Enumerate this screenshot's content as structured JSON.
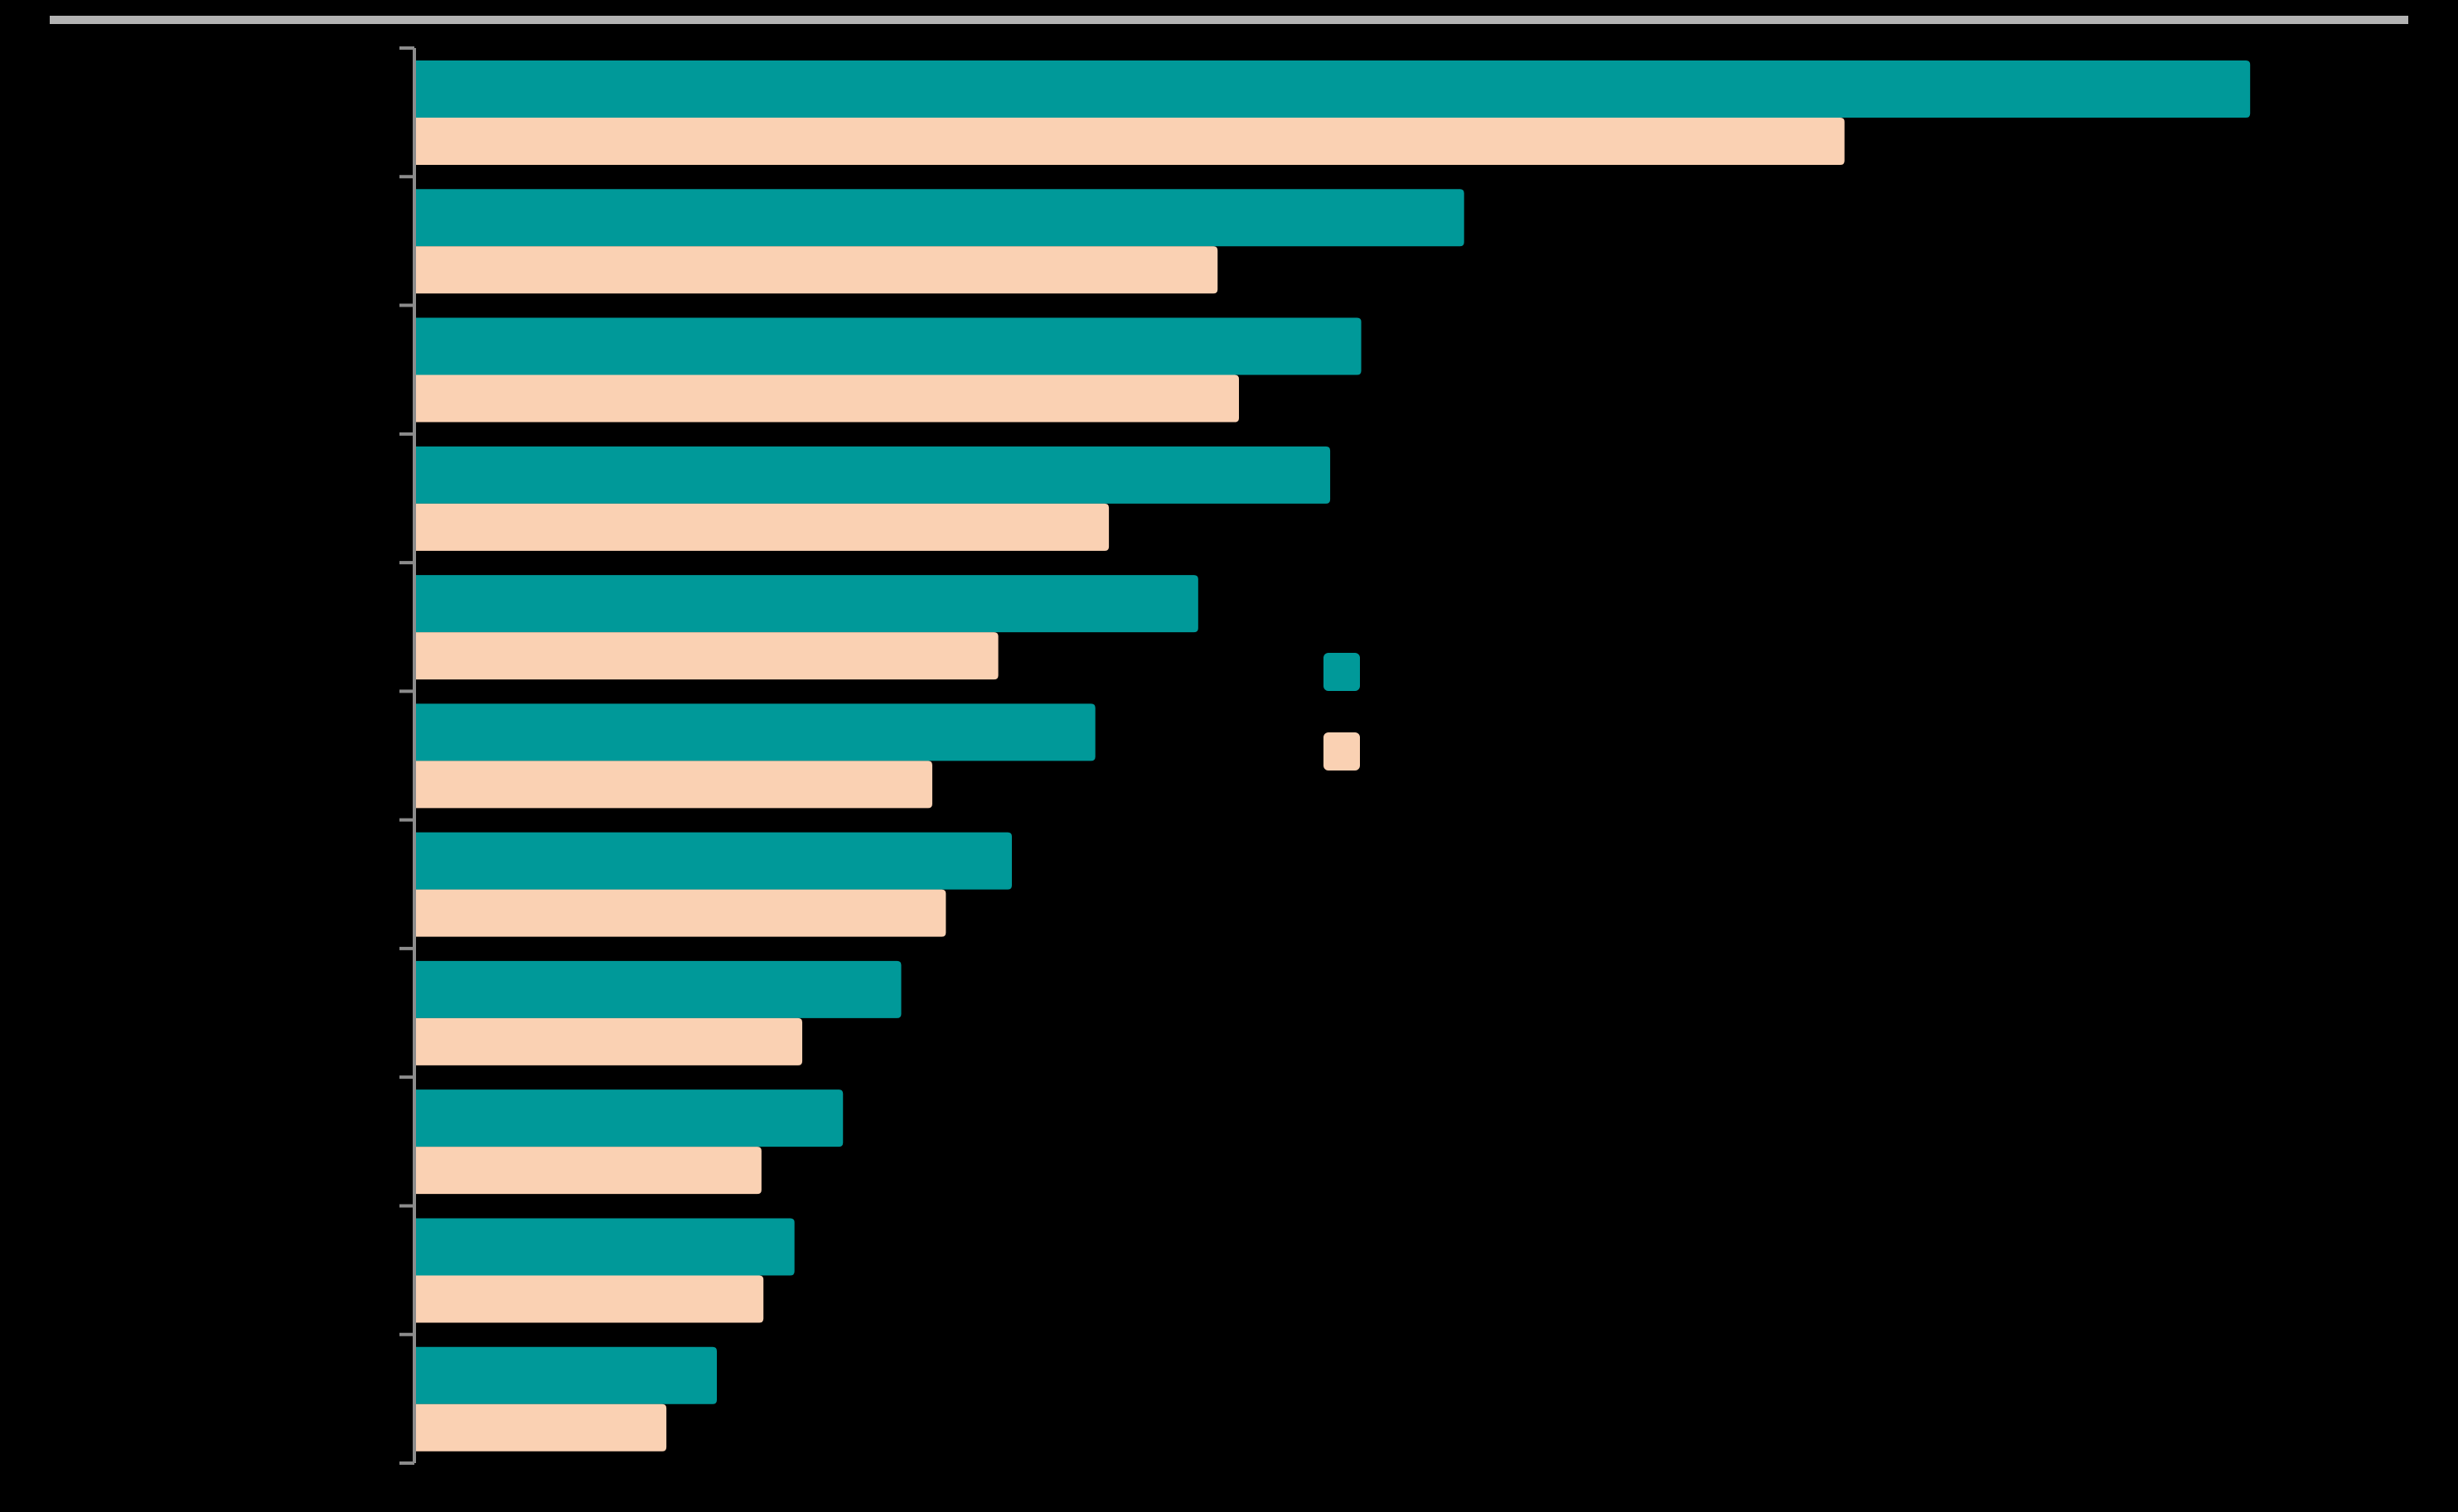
{
  "colors": {
    "background": "#000000",
    "series_1": "#009999",
    "series_2": "#fad1b3",
    "axis": "#8c8c8c",
    "top_rule": "#b3b3b3"
  },
  "chart_data": {
    "type": "bar",
    "orientation": "horizontal",
    "title": "",
    "xlabel": "",
    "ylabel": "",
    "categories": [
      "",
      "",
      "",
      "",
      "",
      "",
      "",
      "",
      "",
      "",
      ""
    ],
    "xlim": [
      0,
      100
    ],
    "grid": false,
    "legend_position": "center-right",
    "series": [
      {
        "color": "#009999",
        "values": [
          94.5,
          54,
          48.7,
          47.1,
          40.3,
          35,
          30.7,
          25,
          22,
          19.5,
          15.5
        ]
      },
      {
        "color": "#fad1b3",
        "values": [
          73.6,
          41.3,
          42.4,
          35.7,
          30,
          26.6,
          27.3,
          19.9,
          17.8,
          17.9,
          12.9
        ]
      }
    ]
  }
}
